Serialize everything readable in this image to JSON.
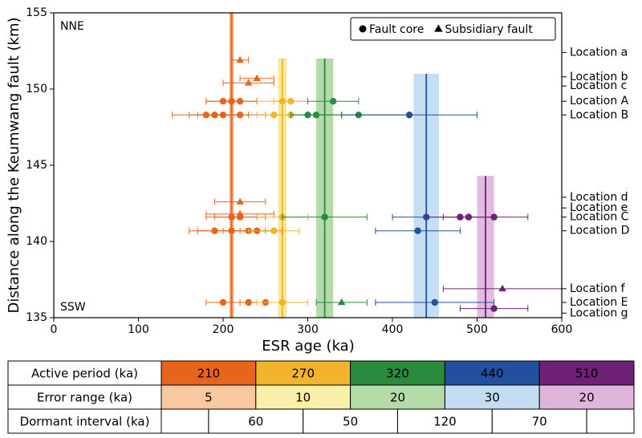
{
  "chart_data": {
    "type": "scatter",
    "xlabel": "ESR age (ka)",
    "ylabel": "Distance along the Keumwang fault (km)",
    "xlim": [
      0,
      600
    ],
    "ylim": [
      135,
      155
    ],
    "xticks": [
      0,
      100,
      200,
      300,
      400,
      500,
      600
    ],
    "yticks": [
      135,
      140,
      145,
      150,
      155
    ],
    "annotations": [
      "NNE",
      "SSW"
    ],
    "legend": [
      {
        "label": "Fault core",
        "marker": "circle"
      },
      {
        "label": "Subsidiary fault",
        "marker": "triangle"
      }
    ],
    "legend_position": "upper right",
    "band_tops": [
      155,
      152,
      152,
      151,
      144.3
    ],
    "series": [
      {
        "color": "#e8641b",
        "band_color": "#f4a06a",
        "x": [
          220,
          240,
          230,
          200,
          210,
          220,
          180,
          190,
          200,
          220,
          220,
          220,
          210,
          220,
          190,
          210,
          230,
          240,
          200,
          230,
          250
        ],
        "y": [
          151.9,
          150.7,
          150.4,
          149.2,
          149.2,
          149.2,
          148.3,
          148.3,
          148.3,
          148.3,
          142.6,
          141.8,
          141.6,
          141.6,
          140.7,
          140.7,
          140.7,
          140.7,
          136.0,
          136.0,
          136.0
        ],
        "xerr": [
          10,
          20,
          30,
          20,
          30,
          20,
          40,
          30,
          30,
          30,
          30,
          40,
          30,
          30,
          30,
          40,
          30,
          30,
          20,
          20,
          20
        ],
        "marker": [
          "triangle",
          "triangle",
          "triangle",
          "circle",
          "circle",
          "circle",
          "circle",
          "circle",
          "circle",
          "circle",
          "triangle",
          "triangle",
          "circle",
          "circle",
          "circle",
          "circle",
          "circle",
          "circle",
          "circle",
          "circle",
          "circle"
        ]
      },
      {
        "color": "#f2b42a",
        "band_color": "#f8e38a",
        "x": [
          270,
          280,
          260,
          280,
          270,
          260,
          270
        ],
        "y": [
          149.2,
          149.2,
          148.3,
          148.3,
          141.6,
          140.7,
          136.0
        ],
        "xerr": [
          30,
          20,
          20,
          30,
          30,
          30,
          30
        ],
        "marker": [
          "circle",
          "circle",
          "circle",
          "circle",
          "circle",
          "circle",
          "circle"
        ]
      },
      {
        "color": "#2a8a3e",
        "band_color": "#a6d49a",
        "x": [
          330,
          300,
          310,
          360,
          320,
          340
        ],
        "y": [
          149.2,
          148.3,
          148.3,
          148.3,
          141.6,
          136.0
        ],
        "xerr": [
          30,
          20,
          30,
          60,
          50,
          30
        ],
        "marker": [
          "circle",
          "circle",
          "circle",
          "circle",
          "circle",
          "triangle"
        ]
      },
      {
        "color": "#23509e",
        "band_color": "#bcd8f2",
        "x": [
          420,
          440,
          430,
          450
        ],
        "y": [
          148.3,
          141.6,
          140.7,
          136.0
        ],
        "xerr": [
          80,
          40,
          50,
          70
        ],
        "marker": [
          "circle",
          "circle",
          "circle",
          "circle"
        ]
      },
      {
        "color": "#6e2176",
        "band_color": "#dcb0d8",
        "x": [
          480,
          490,
          520,
          530,
          520
        ],
        "y": [
          141.6,
          141.6,
          141.6,
          136.9,
          135.6
        ],
        "xerr": [
          40,
          30,
          40,
          70,
          40
        ],
        "marker": [
          "circle",
          "circle",
          "circle",
          "triangle",
          "circle"
        ]
      }
    ],
    "locations": {
      "labels": [
        "Location a",
        "Location b",
        "Location c",
        "Location A",
        "Location B",
        "Location d",
        "Location e",
        "Location C",
        "Location D",
        "Location f",
        "Location E",
        "Location g"
      ],
      "y": [
        152.4,
        150.8,
        150.2,
        149.2,
        148.3,
        142.9,
        142.2,
        141.6,
        140.7,
        136.9,
        136.0,
        135.3
      ],
      "colors": [
        "#999",
        "#999",
        "#999",
        "#000",
        "#000",
        "#999",
        "#999",
        "#000",
        "#000",
        "#999",
        "#000",
        "#999"
      ]
    }
  },
  "table": {
    "rows": [
      {
        "header": "Active period (ka)",
        "values": [
          210,
          270,
          320,
          440,
          510
        ],
        "colors": [
          "#e8641b",
          "#f2b42a",
          "#2a8a3e",
          "#23509e",
          "#6e2176"
        ],
        "text_color": "#fff"
      },
      {
        "header": "Error range (ka)",
        "values": [
          5,
          10,
          20,
          30,
          20
        ],
        "colors": [
          "#f8c8a0",
          "#f8efa8",
          "#b4dba8",
          "#c4dcf2",
          "#dfb5da"
        ],
        "text_color": "#000"
      },
      {
        "header": "Dormant interval (ka)",
        "values": [
          60,
          50,
          120,
          70
        ]
      }
    ]
  }
}
